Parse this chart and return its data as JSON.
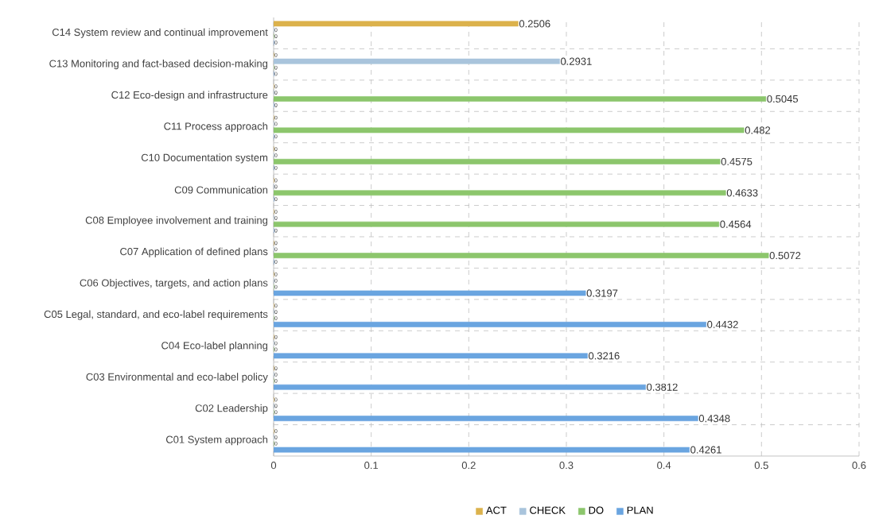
{
  "chart_data": {
    "type": "bar",
    "orientation": "horizontal",
    "categories": [
      "C14 System review and continual improvement",
      "C13 Monitoring and fact-based decision-making",
      "C12 Eco-design and infrastructure",
      "C11 Process approach",
      "C10 Documentation system",
      "C09 Communication",
      "C08 Employee involvement and training",
      "C07 Application of defined plans",
      "C06 Objectives, targets, and action plans",
      "C05 Legal, standard, and eco-label requirements",
      "C04 Eco-label planning",
      "C03 Environmental and eco-label policy",
      "C02 Leadership",
      "C01 System approach"
    ],
    "series": [
      {
        "name": "ACT",
        "color": "#dcb24c",
        "values": [
          0.2506,
          0,
          0,
          0,
          0,
          0,
          0,
          0,
          0,
          0,
          0,
          0,
          0,
          0
        ]
      },
      {
        "name": "CHECK",
        "color": "#a9c4dc",
        "values": [
          0,
          0.2931,
          0,
          0,
          0,
          0,
          0,
          0,
          0,
          0,
          0,
          0,
          0,
          0
        ]
      },
      {
        "name": "DO",
        "color": "#8cc66c",
        "values": [
          0,
          0,
          0.5045,
          0.482,
          0.4575,
          0.4633,
          0.4564,
          0.5072,
          0,
          0,
          0,
          0,
          0,
          0
        ]
      },
      {
        "name": "PLAN",
        "color": "#6aa5e0",
        "values": [
          0,
          0,
          0,
          0,
          0,
          0,
          0,
          0,
          0.3197,
          0.4432,
          0.3216,
          0.3812,
          0.4348,
          0.4261
        ]
      }
    ],
    "xlim": [
      0,
      0.6
    ],
    "xticks": [
      0,
      0.1,
      0.2,
      0.3,
      0.4,
      0.5,
      0.6
    ],
    "data_labels": true,
    "grid": true,
    "legend": "bottom"
  }
}
